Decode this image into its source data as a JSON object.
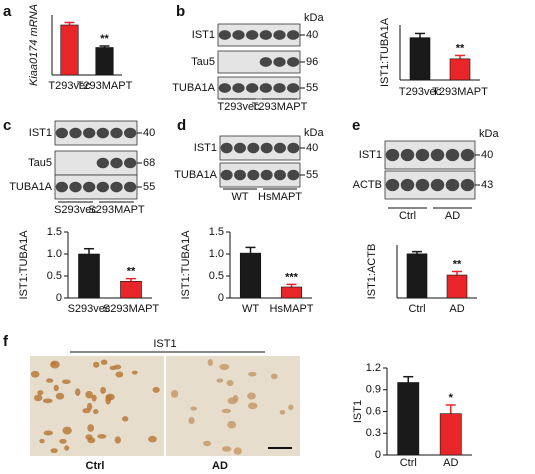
{
  "panels": [
    "a",
    "b",
    "c",
    "d",
    "e",
    "f"
  ],
  "blots": [
    {
      "unit": "kDa",
      "rows": [
        {
          "label": "IST1",
          "kda": "40"
        },
        {
          "label": "Tau5",
          "kda": "96"
        },
        {
          "label": "TUBA1A",
          "kda": "55"
        }
      ],
      "lanes": [
        "T293vec",
        "T293MAPT"
      ]
    },
    {
      "rows": [
        {
          "label": "IST1",
          "kda": "40"
        },
        {
          "label": "Tau5",
          "kda": "68"
        },
        {
          "label": "TUBA1A",
          "kda": "55"
        }
      ],
      "lanes": [
        "S293vec",
        "S293MAPT"
      ]
    },
    {
      "unit": "kDa",
      "rows": [
        {
          "label": "IST1",
          "kda": "40"
        },
        {
          "label": "TUBA1A",
          "kda": "55"
        }
      ],
      "lanes": [
        "WT",
        "HsMAPT"
      ]
    },
    {
      "unit": "kDa",
      "rows": [
        {
          "label": "IST1",
          "kda": "40"
        },
        {
          "label": "ACTB",
          "kda": "43"
        }
      ],
      "lanes": [
        "Ctrl",
        "AD"
      ]
    }
  ],
  "image": {
    "title": "IST1",
    "labels": [
      "Ctrl",
      "AD"
    ]
  },
  "chart_data": [
    {
      "type": "bar",
      "ylabel": "Kiaa0174 mRNA",
      "categories": [
        "T293vec",
        "T293MAPT"
      ],
      "values": [
        1.0,
        0.55
      ],
      "errors": [
        0.05,
        0.03
      ],
      "colors": [
        "#e8262a",
        "#1a1a1a"
      ],
      "ylim": [
        0,
        1.2
      ],
      "significance": "**"
    },
    {
      "type": "bar",
      "ylabel": "IST1:TUBA1A",
      "categories": [
        "T293vec",
        "T293MAPT"
      ],
      "values": [
        1.0,
        0.5
      ],
      "errors": [
        0.1,
        0.08
      ],
      "colors": [
        "#1a1a1a",
        "#e8262a"
      ],
      "ylim": [
        0,
        1.3
      ],
      "significance": "**"
    },
    {
      "type": "bar",
      "ylabel": "IST1:TUBA1A",
      "categories": [
        "S293vec",
        "S293MAPT"
      ],
      "values": [
        1.0,
        0.38
      ],
      "errors": [
        0.12,
        0.06
      ],
      "colors": [
        "#1a1a1a",
        "#e8262a"
      ],
      "ylim": [
        0,
        1.5
      ],
      "yticks": [
        0,
        0.5,
        {
          "value": 1,
          "label": "1.0"
        },
        1.5
      ],
      "significance": "**"
    },
    {
      "type": "bar",
      "ylabel": "IST1:TUBA1A",
      "categories": [
        "WT",
        "HsMAPT"
      ],
      "values": [
        1.02,
        0.25
      ],
      "errors": [
        0.13,
        0.06
      ],
      "colors": [
        "#1a1a1a",
        "#e8262a"
      ],
      "ylim": [
        0,
        1.5
      ],
      "yticks": [
        0,
        0.5,
        {
          "value": 1,
          "label": "1.0"
        },
        1.5
      ],
      "significance": "***"
    },
    {
      "type": "bar",
      "ylabel": "IST1:ACTB",
      "categories": [
        "Ctrl",
        "AD"
      ],
      "values": [
        1.0,
        0.52
      ],
      "errors": [
        0.05,
        0.08
      ],
      "colors": [
        "#1a1a1a",
        "#e8262a"
      ],
      "ylim": [
        0,
        1.2
      ],
      "significance": "**"
    },
    {
      "type": "bar",
      "ylabel": "IST1",
      "categories": [
        "Ctrl",
        "AD"
      ],
      "values": [
        1.0,
        0.57
      ],
      "errors": [
        0.08,
        0.12
      ],
      "colors": [
        "#1a1a1a",
        "#e8262a"
      ],
      "ylim": [
        0,
        1.2
      ],
      "yticks": [
        0,
        0.3,
        0.6,
        0.9,
        1.2
      ],
      "significance": "*"
    }
  ]
}
